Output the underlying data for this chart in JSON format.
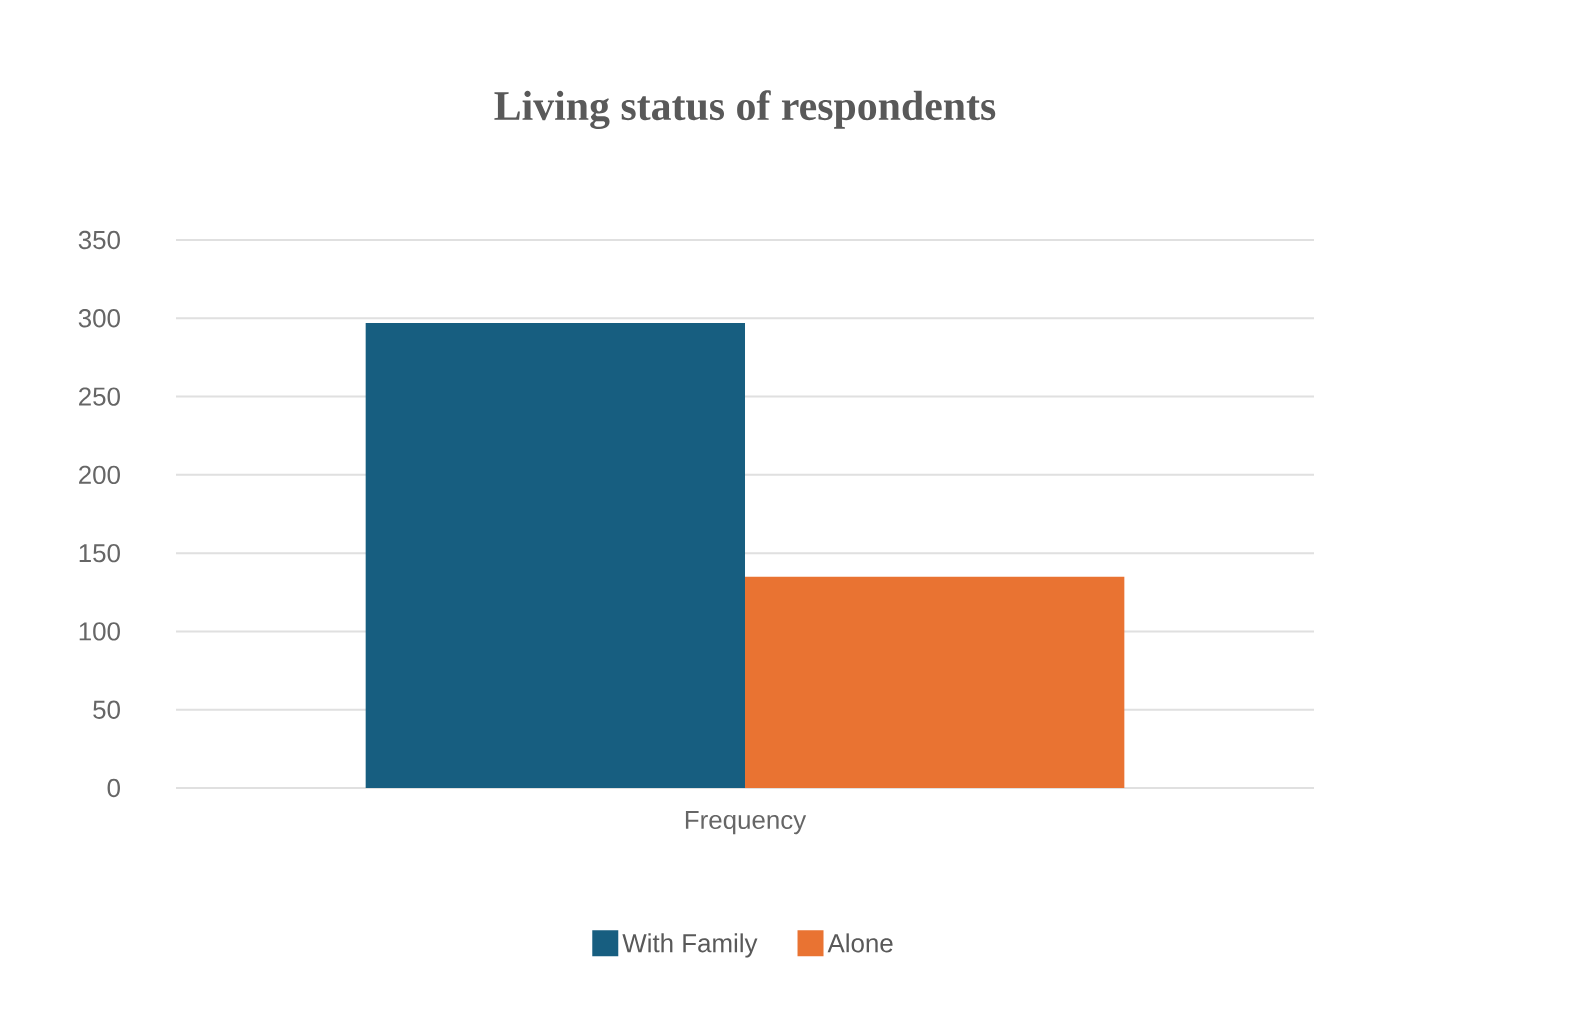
{
  "chart_data": {
    "type": "bar",
    "title": "Living status of respondents",
    "categories": [
      "Frequency"
    ],
    "series": [
      {
        "name": "With Family",
        "color": "#175e80",
        "values": [
          297
        ]
      },
      {
        "name": "Alone",
        "color": "#e97332",
        "values": [
          135
        ]
      }
    ],
    "ylim": [
      0,
      350
    ],
    "yticks": [
      0,
      50,
      100,
      150,
      200,
      250,
      300,
      350
    ],
    "grid": "y",
    "legend": "bottom"
  }
}
